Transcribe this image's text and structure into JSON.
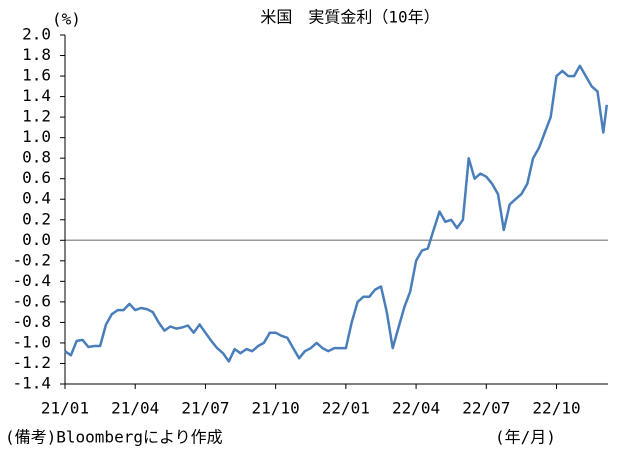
{
  "chart_data": {
    "type": "line",
    "title": "米国　実質金利（10年）",
    "y_label": "(%)",
    "x_unit_label": "(年/月)",
    "note": "(備考)Bloombergにより作成",
    "color": "#4a7ebb",
    "x": [
      0,
      0.25,
      0.5,
      0.75,
      1,
      1.25,
      1.5,
      1.75,
      2,
      2.25,
      2.5,
      2.75,
      3,
      3.25,
      3.5,
      3.75,
      4,
      4.25,
      4.5,
      4.75,
      5,
      5.25,
      5.5,
      5.75,
      6,
      6.25,
      6.5,
      6.75,
      7,
      7.25,
      7.5,
      7.75,
      8,
      8.25,
      8.5,
      8.75,
      9,
      9.25,
      9.5,
      9.75,
      10,
      10.25,
      10.5,
      10.75,
      11,
      11.25,
      11.5,
      11.75,
      12,
      12.25,
      12.5,
      12.75,
      13,
      13.25,
      13.5,
      13.75,
      14,
      14.25,
      14.5,
      14.75,
      15,
      15.25,
      15.5,
      15.75,
      16,
      16.25,
      16.5,
      16.75,
      17,
      17.25,
      17.5,
      17.75,
      18,
      18.25,
      18.5,
      18.75,
      19,
      19.25,
      19.5,
      19.75,
      20,
      20.25,
      20.5,
      20.75,
      21,
      21.25,
      21.5,
      21.75,
      22,
      22.25,
      22.5,
      22.75,
      23,
      23.15
    ],
    "values": [
      -1.08,
      -1.12,
      -0.98,
      -0.97,
      -1.04,
      -1.03,
      -1.03,
      -0.82,
      -0.72,
      -0.68,
      -0.68,
      -0.62,
      -0.68,
      -0.66,
      -0.67,
      -0.7,
      -0.8,
      -0.88,
      -0.84,
      -0.86,
      -0.85,
      -0.83,
      -0.9,
      -0.82,
      -0.9,
      -0.98,
      -1.05,
      -1.1,
      -1.18,
      -1.06,
      -1.1,
      -1.06,
      -1.08,
      -1.03,
      -1.0,
      -0.9,
      -0.9,
      -0.93,
      -0.95,
      -1.05,
      -1.15,
      -1.08,
      -1.05,
      -1.0,
      -1.05,
      -1.08,
      -1.05,
      -1.05,
      -1.05,
      -0.8,
      -0.6,
      -0.55,
      -0.55,
      -0.48,
      -0.45,
      -0.7,
      -1.05,
      -0.85,
      -0.65,
      -0.5,
      -0.2,
      -0.1,
      -0.08,
      0.1,
      0.28,
      0.18,
      0.2,
      0.12,
      0.2,
      0.8,
      0.6,
      0.65,
      0.62,
      0.55,
      0.45,
      0.1,
      0.35,
      0.4,
      0.45,
      0.55,
      0.8,
      0.9,
      1.05,
      1.2,
      1.6,
      1.65,
      1.6,
      1.6,
      1.7,
      1.6,
      1.5,
      1.45,
      1.05,
      1.32
    ],
    "xlim": [
      0,
      23.2
    ],
    "xticks": [
      {
        "value": 0,
        "label": "21/01"
      },
      {
        "value": 3,
        "label": "21/04"
      },
      {
        "value": 6,
        "label": "21/07"
      },
      {
        "value": 9,
        "label": "21/10"
      },
      {
        "value": 12,
        "label": "22/01"
      },
      {
        "value": 15,
        "label": "22/04"
      },
      {
        "value": 18,
        "label": "22/07"
      },
      {
        "value": 21,
        "label": "22/10"
      }
    ],
    "ylim": [
      -1.4,
      2.0
    ],
    "yticks": [
      {
        "value": 2,
        "label": "2.0"
      },
      1.8,
      1.6,
      1.4,
      1.2,
      {
        "value": 1,
        "label": "1.0"
      },
      0.8,
      0.6,
      0.4,
      0.2,
      {
        "value": 0,
        "label": "0.0"
      },
      -0.2,
      -0.4,
      -0.6,
      -0.8,
      {
        "value": -1,
        "label": "-1.0"
      },
      -1.2,
      -1.4
    ]
  }
}
